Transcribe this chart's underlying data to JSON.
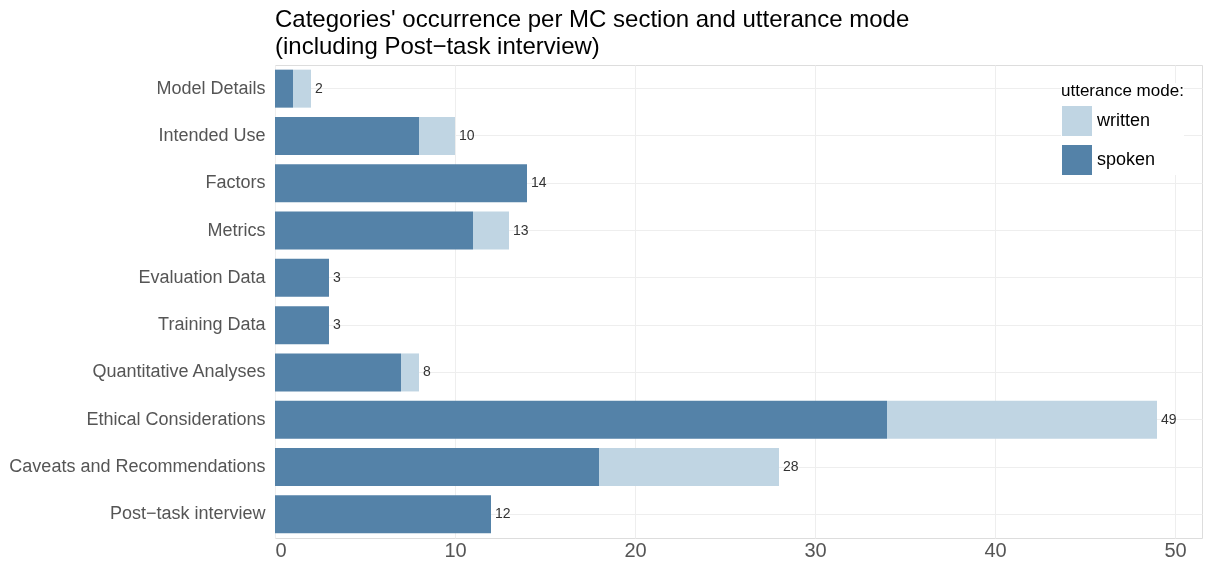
{
  "chart_data": {
    "type": "bar",
    "orientation": "horizontal",
    "stacked": true,
    "title": "Categories' occurrence per MC section and utterance mode",
    "subtitle": "(including Post−task interview)",
    "legend_title": "utterance mode:",
    "legend": "top right",
    "grid": true,
    "categories": [
      "Model Details",
      "Intended Use",
      "Factors",
      "Metrics",
      "Evaluation Data",
      "Training Data",
      "Quantitative Analyses",
      "Ethical Considerations",
      "Caveats and Recommendations",
      "Post−task interview"
    ],
    "series": [
      {
        "name": "spoken",
        "color": "#5482a8",
        "values": [
          1,
          8,
          14,
          11,
          3,
          3,
          7,
          34,
          18,
          12
        ]
      },
      {
        "name": "written",
        "color": "#c0d5e3",
        "values": [
          1,
          2,
          0,
          2,
          0,
          0,
          1,
          15,
          10,
          0
        ]
      }
    ],
    "totals": [
      "2",
      "10",
      "14",
      "13",
      "3",
      "3",
      "8",
      "49",
      "28",
      "12"
    ],
    "xlim": [
      0,
      51.5
    ],
    "xticks": [
      0,
      10,
      20,
      30,
      40,
      50
    ]
  }
}
